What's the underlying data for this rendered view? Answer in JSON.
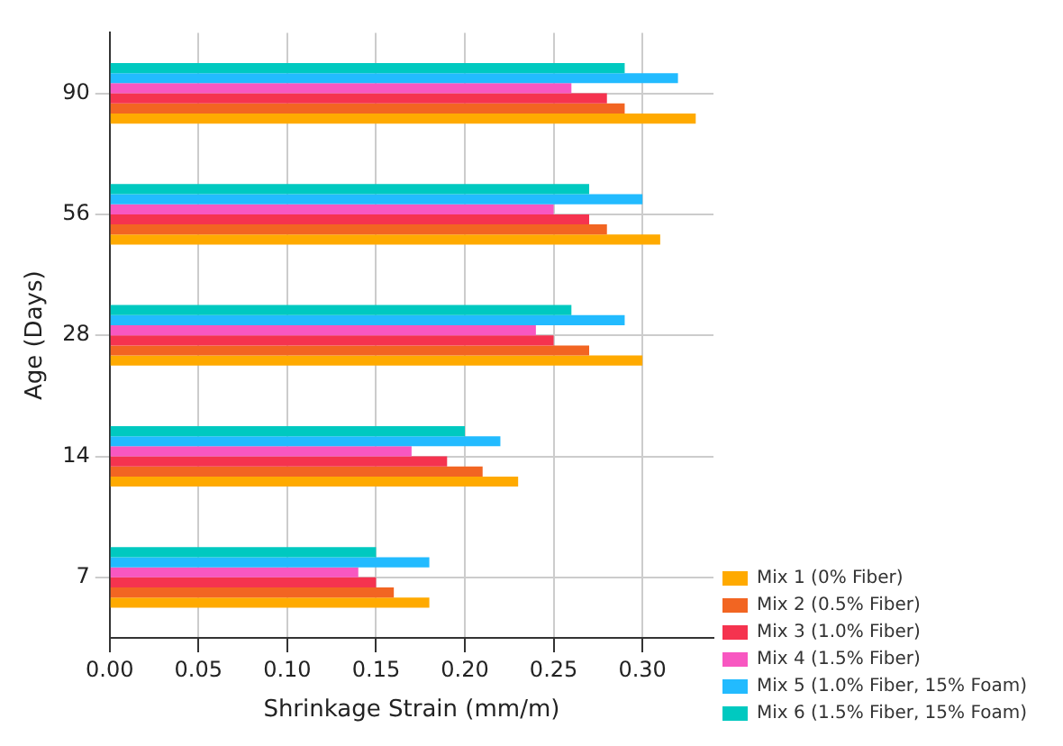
{
  "chart_data": {
    "type": "bar",
    "orientation": "horizontal",
    "xlabel": "Shrinkage Strain (mm/m)",
    "ylabel": "Age (Days)",
    "categories": [
      "90",
      "56",
      "28",
      "14",
      "7"
    ],
    "series": [
      {
        "name": "Mix 1 (0% Fiber)",
        "color": "#ffaa00",
        "values": [
          0.33,
          0.31,
          0.3,
          0.23,
          0.18
        ]
      },
      {
        "name": "Mix 2 (0.5% Fiber)",
        "color": "#f26522",
        "values": [
          0.29,
          0.28,
          0.27,
          0.21,
          0.16
        ]
      },
      {
        "name": "Mix 3 (1.0% Fiber)",
        "color": "#f5334f",
        "values": [
          0.28,
          0.27,
          0.25,
          0.19,
          0.15
        ]
      },
      {
        "name": "Mix 4 (1.5% Fiber)",
        "color": "#f857c1",
        "values": [
          0.26,
          0.25,
          0.24,
          0.17,
          0.14
        ]
      },
      {
        "name": "Mix 5 (1.0% Fiber, 15% Foam)",
        "color": "#22bbff",
        "values": [
          0.32,
          0.3,
          0.29,
          0.22,
          0.18
        ]
      },
      {
        "name": "Mix 6 (1.5% Fiber, 15% Foam)",
        "color": "#00c9c0",
        "values": [
          0.29,
          0.27,
          0.26,
          0.2,
          0.15
        ]
      }
    ],
    "xlim": [
      0,
      0.34
    ],
    "xticks": [
      {
        "value": 0,
        "label": "0.00"
      },
      {
        "value": 0.05,
        "label": "0.05"
      },
      {
        "value": 0.1,
        "label": "0.10"
      },
      {
        "value": 0.15,
        "label": "0.15"
      },
      {
        "value": 0.2,
        "label": "0.20"
      },
      {
        "value": 0.25,
        "label": "0.25"
      },
      {
        "value": 0.3,
        "label": "0.30"
      }
    ],
    "grid": true,
    "legend": "bottom right"
  }
}
